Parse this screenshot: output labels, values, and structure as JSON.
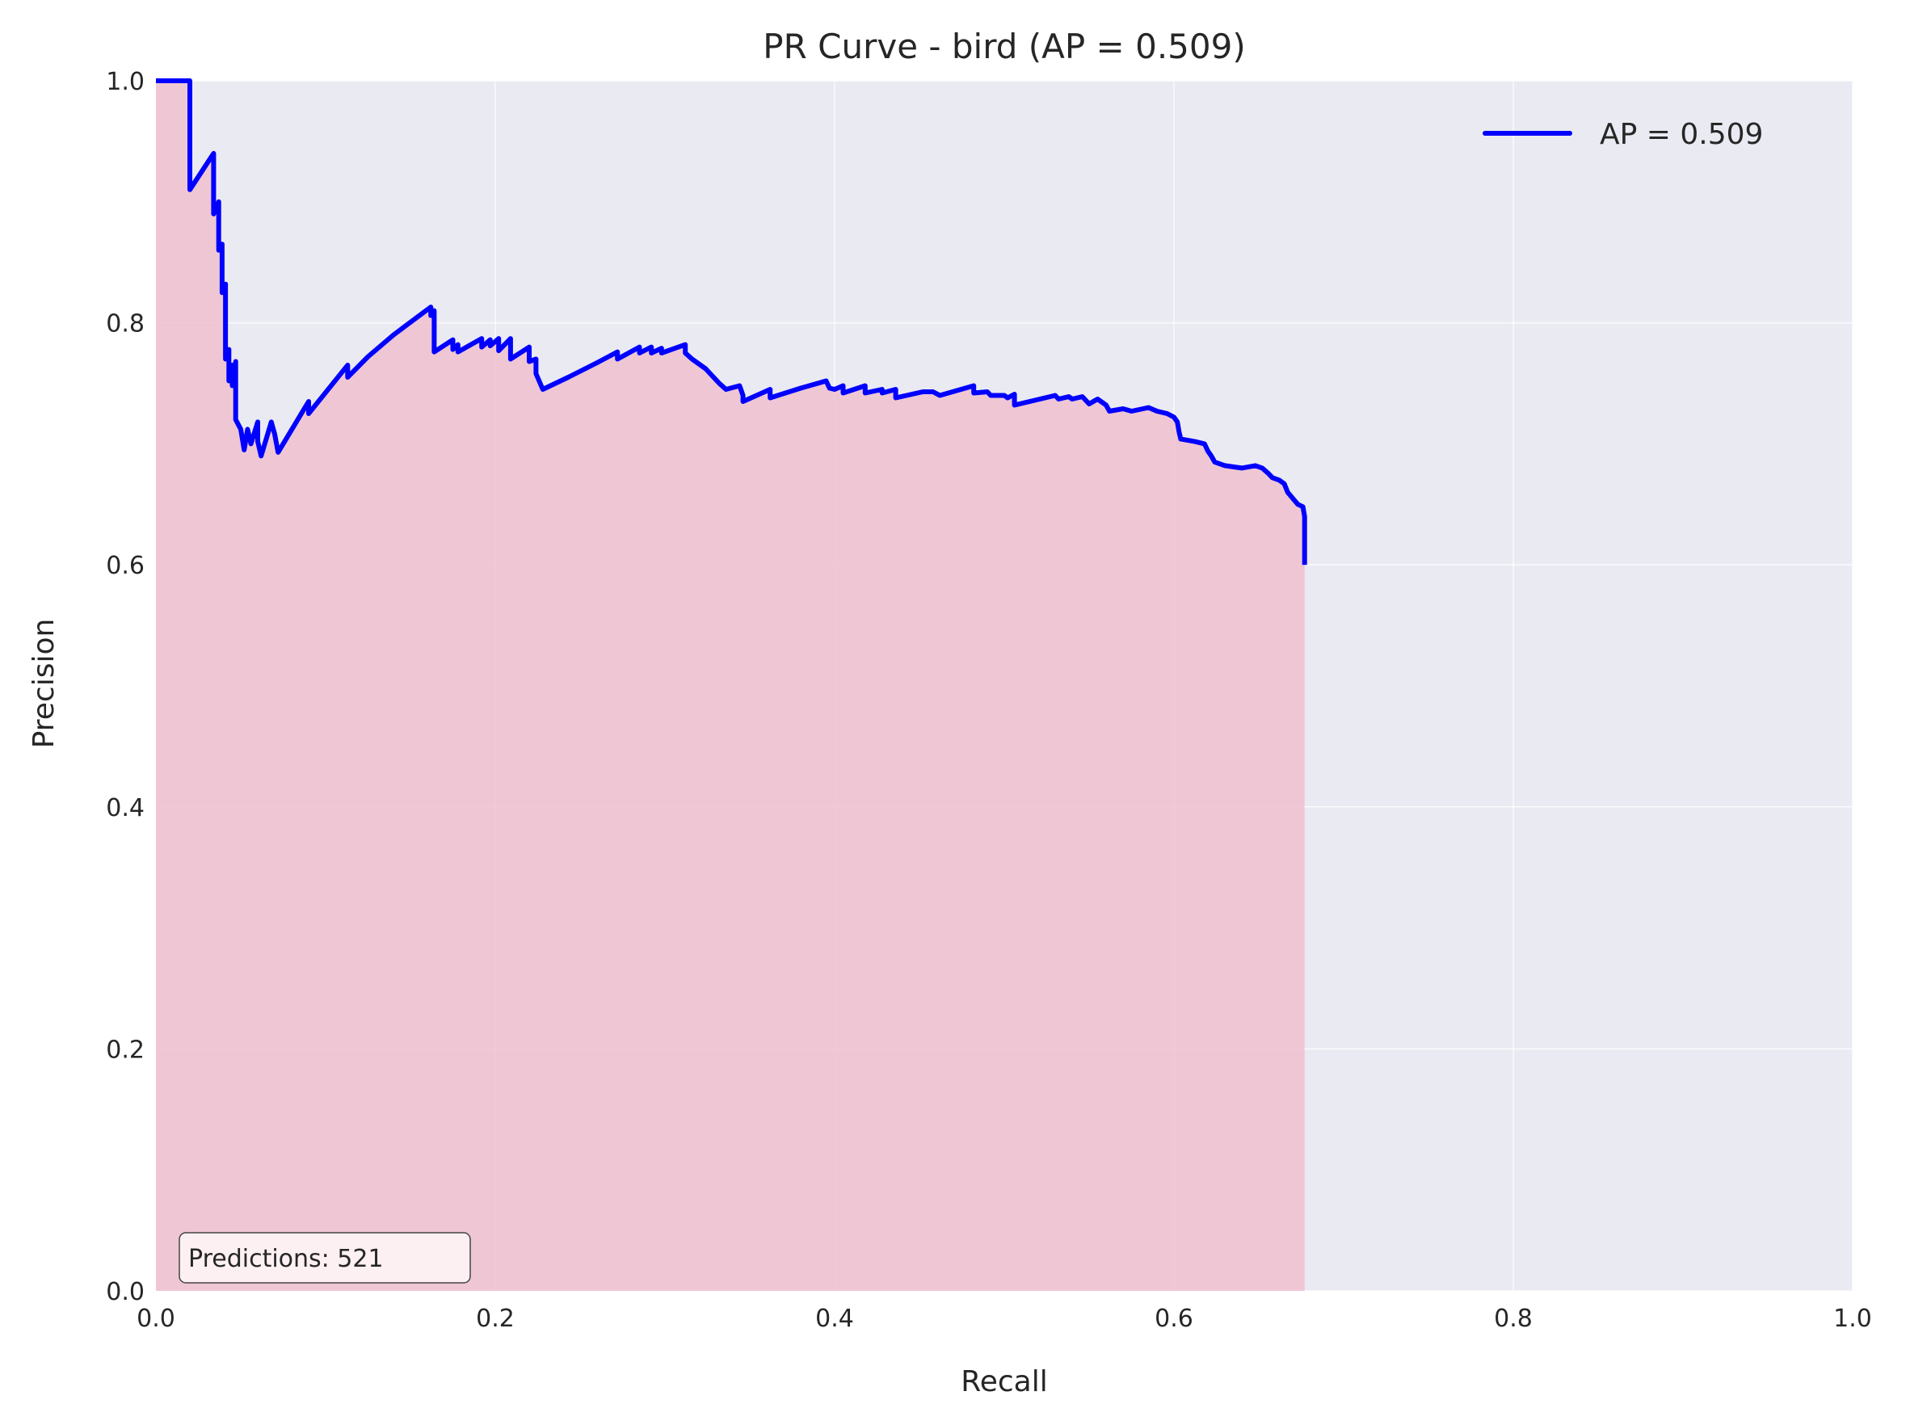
{
  "chart_data": {
    "type": "line",
    "title": "PR Curve - bird (AP = 0.509)",
    "xlabel": "Recall",
    "ylabel": "Precision",
    "xlim": [
      0.0,
      1.0
    ],
    "ylim": [
      0.0,
      1.0
    ],
    "x_ticks": [
      "0.0",
      "0.2",
      "0.4",
      "0.6",
      "0.8",
      "1.0"
    ],
    "y_ticks": [
      "0.0",
      "0.2",
      "0.4",
      "0.6",
      "0.8",
      "1.0"
    ],
    "grid": true,
    "legend_position": "top-right",
    "annotation": "Predictions: 521",
    "colors": {
      "background": "#eaeaf2",
      "line": "#0000ff",
      "fill": "#f0bfcf",
      "grid": "#ffffff"
    },
    "series": [
      {
        "name": "AP = 0.509",
        "fill_under": true,
        "points": [
          [
            0.0,
            1.0
          ],
          [
            0.02,
            1.0
          ],
          [
            0.02,
            0.91
          ],
          [
            0.034,
            0.94
          ],
          [
            0.034,
            0.89
          ],
          [
            0.037,
            0.9
          ],
          [
            0.037,
            0.86
          ],
          [
            0.039,
            0.865
          ],
          [
            0.039,
            0.825
          ],
          [
            0.041,
            0.832
          ],
          [
            0.041,
            0.77
          ],
          [
            0.043,
            0.778
          ],
          [
            0.043,
            0.752
          ],
          [
            0.045,
            0.765
          ],
          [
            0.045,
            0.748
          ],
          [
            0.047,
            0.768
          ],
          [
            0.047,
            0.72
          ],
          [
            0.05,
            0.712
          ],
          [
            0.052,
            0.695
          ],
          [
            0.054,
            0.712
          ],
          [
            0.056,
            0.7
          ],
          [
            0.06,
            0.718
          ],
          [
            0.06,
            0.702
          ],
          [
            0.062,
            0.69
          ],
          [
            0.068,
            0.718
          ],
          [
            0.07,
            0.708
          ],
          [
            0.072,
            0.693
          ],
          [
            0.09,
            0.735
          ],
          [
            0.09,
            0.725
          ],
          [
            0.113,
            0.765
          ],
          [
            0.113,
            0.755
          ],
          [
            0.125,
            0.772
          ],
          [
            0.14,
            0.79
          ],
          [
            0.162,
            0.813
          ],
          [
            0.162,
            0.806
          ],
          [
            0.164,
            0.81
          ],
          [
            0.164,
            0.776
          ],
          [
            0.175,
            0.786
          ],
          [
            0.175,
            0.778
          ],
          [
            0.178,
            0.782
          ],
          [
            0.178,
            0.776
          ],
          [
            0.192,
            0.787
          ],
          [
            0.192,
            0.78
          ],
          [
            0.197,
            0.786
          ],
          [
            0.197,
            0.781
          ],
          [
            0.202,
            0.787
          ],
          [
            0.202,
            0.777
          ],
          [
            0.209,
            0.787
          ],
          [
            0.209,
            0.77
          ],
          [
            0.22,
            0.78
          ],
          [
            0.22,
            0.768
          ],
          [
            0.224,
            0.77
          ],
          [
            0.224,
            0.758
          ],
          [
            0.228,
            0.745
          ],
          [
            0.243,
            0.755
          ],
          [
            0.26,
            0.767
          ],
          [
            0.272,
            0.776
          ],
          [
            0.272,
            0.77
          ],
          [
            0.285,
            0.78
          ],
          [
            0.285,
            0.775
          ],
          [
            0.292,
            0.78
          ],
          [
            0.292,
            0.775
          ],
          [
            0.298,
            0.779
          ],
          [
            0.298,
            0.775
          ],
          [
            0.312,
            0.782
          ],
          [
            0.312,
            0.775
          ],
          [
            0.316,
            0.77
          ],
          [
            0.32,
            0.766
          ],
          [
            0.324,
            0.762
          ],
          [
            0.328,
            0.756
          ],
          [
            0.332,
            0.75
          ],
          [
            0.336,
            0.745
          ],
          [
            0.344,
            0.748
          ],
          [
            0.346,
            0.74
          ],
          [
            0.346,
            0.735
          ],
          [
            0.362,
            0.745
          ],
          [
            0.362,
            0.738
          ],
          [
            0.38,
            0.746
          ],
          [
            0.395,
            0.752
          ],
          [
            0.397,
            0.746
          ],
          [
            0.4,
            0.745
          ],
          [
            0.405,
            0.748
          ],
          [
            0.405,
            0.742
          ],
          [
            0.418,
            0.748
          ],
          [
            0.418,
            0.742
          ],
          [
            0.428,
            0.745
          ],
          [
            0.428,
            0.742
          ],
          [
            0.436,
            0.745
          ],
          [
            0.436,
            0.738
          ],
          [
            0.452,
            0.743
          ],
          [
            0.458,
            0.743
          ],
          [
            0.462,
            0.74
          ],
          [
            0.482,
            0.748
          ],
          [
            0.482,
            0.742
          ],
          [
            0.49,
            0.743
          ],
          [
            0.492,
            0.74
          ],
          [
            0.5,
            0.74
          ],
          [
            0.502,
            0.738
          ],
          [
            0.506,
            0.741
          ],
          [
            0.506,
            0.732
          ],
          [
            0.53,
            0.74
          ],
          [
            0.532,
            0.737
          ],
          [
            0.538,
            0.739
          ],
          [
            0.54,
            0.737
          ],
          [
            0.546,
            0.739
          ],
          [
            0.55,
            0.733
          ],
          [
            0.555,
            0.737
          ],
          [
            0.56,
            0.732
          ],
          [
            0.562,
            0.727
          ],
          [
            0.57,
            0.729
          ],
          [
            0.575,
            0.727
          ],
          [
            0.585,
            0.73
          ],
          [
            0.59,
            0.727
          ],
          [
            0.596,
            0.725
          ],
          [
            0.6,
            0.722
          ],
          [
            0.602,
            0.718
          ],
          [
            0.603,
            0.71
          ],
          [
            0.604,
            0.704
          ],
          [
            0.612,
            0.702
          ],
          [
            0.618,
            0.7
          ],
          [
            0.62,
            0.694
          ],
          [
            0.622,
            0.69
          ],
          [
            0.624,
            0.685
          ],
          [
            0.63,
            0.682
          ],
          [
            0.64,
            0.68
          ],
          [
            0.648,
            0.682
          ],
          [
            0.652,
            0.68
          ],
          [
            0.656,
            0.675
          ],
          [
            0.658,
            0.672
          ],
          [
            0.662,
            0.67
          ],
          [
            0.665,
            0.667
          ],
          [
            0.667,
            0.66
          ],
          [
            0.67,
            0.655
          ],
          [
            0.673,
            0.65
          ],
          [
            0.676,
            0.648
          ],
          [
            0.677,
            0.64
          ],
          [
            0.677,
            0.6
          ]
        ]
      }
    ]
  }
}
